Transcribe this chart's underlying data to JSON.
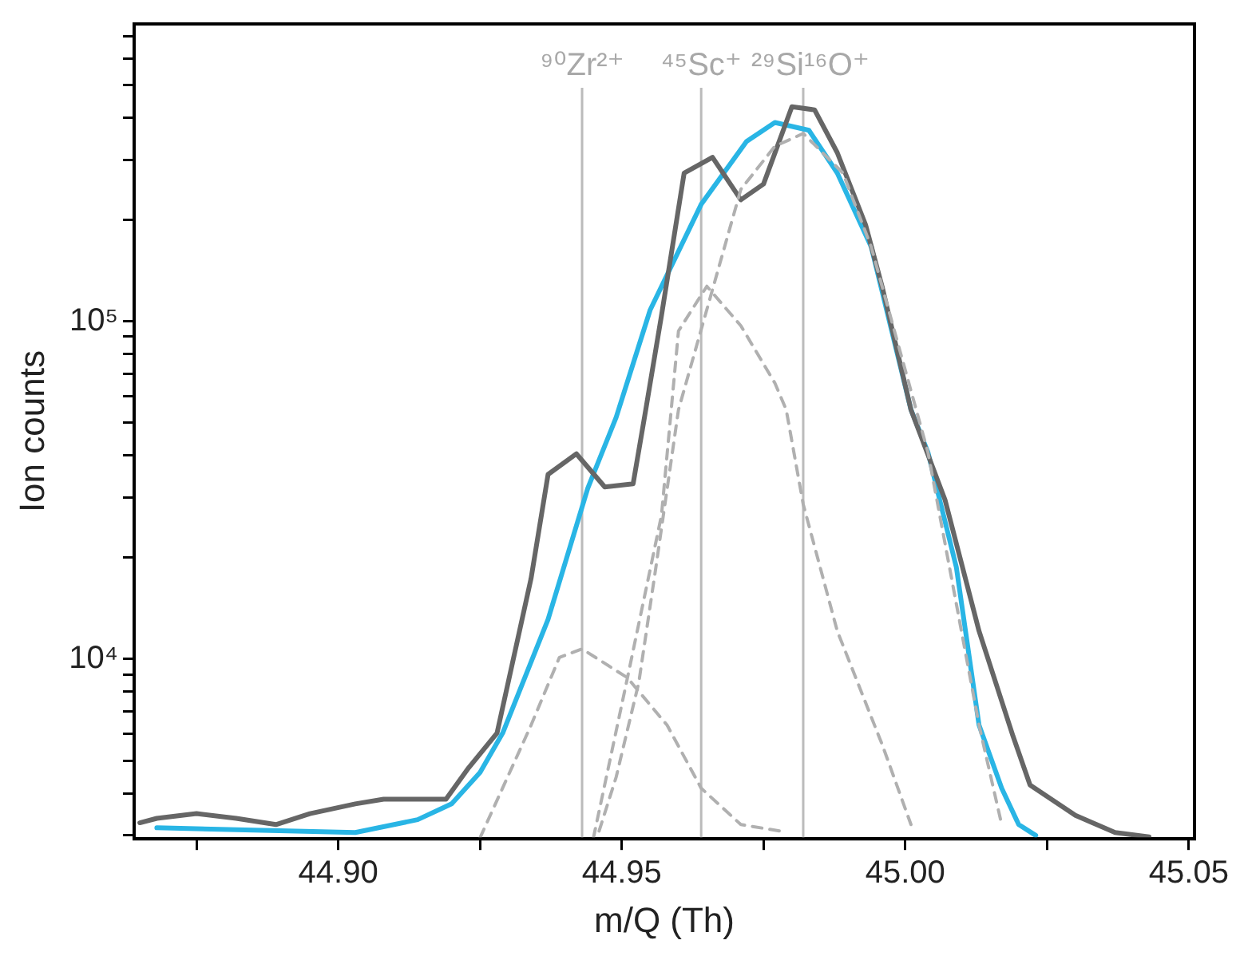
{
  "chart_data": {
    "type": "line",
    "xlabel": "m/Q (Th)",
    "ylabel": "Ion counts",
    "log": "y",
    "grid": false,
    "legend": false,
    "xlim": [
      44.864,
      45.051
    ],
    "ylim": [
      2930,
      760000
    ],
    "xticks": [
      {
        "value": 44.875,
        "label": null
      },
      {
        "value": 44.9,
        "label": "44.90"
      },
      {
        "value": 44.925,
        "label": null
      },
      {
        "value": 44.95,
        "label": "44.95"
      },
      {
        "value": 44.975,
        "label": null
      },
      {
        "value": 45.0,
        "label": "45.00"
      },
      {
        "value": 45.025,
        "label": null
      },
      {
        "value": 45.05,
        "label": "45.05"
      }
    ],
    "yticks": [
      {
        "value": 3000,
        "label": null
      },
      {
        "value": 4000,
        "label": null
      },
      {
        "value": 5000,
        "label": null
      },
      {
        "value": 6000,
        "label": null
      },
      {
        "value": 7000,
        "label": null
      },
      {
        "value": 8000,
        "label": null
      },
      {
        "value": 9000,
        "label": null
      },
      {
        "value": 10000,
        "label": "10⁴"
      },
      {
        "value": 20000,
        "label": null
      },
      {
        "value": 30000,
        "label": null
      },
      {
        "value": 40000,
        "label": null
      },
      {
        "value": 50000,
        "label": null
      },
      {
        "value": 60000,
        "label": null
      },
      {
        "value": 70000,
        "label": null
      },
      {
        "value": 80000,
        "label": null
      },
      {
        "value": 90000,
        "label": null
      },
      {
        "value": 100000,
        "label": "10⁵"
      },
      {
        "value": 200000,
        "label": null
      },
      {
        "value": 300000,
        "label": null
      },
      {
        "value": 400000,
        "label": null
      },
      {
        "value": 500000,
        "label": null
      },
      {
        "value": 600000,
        "label": null
      },
      {
        "value": 700000,
        "label": null
      }
    ],
    "ref_lines": [
      {
        "axis": "x",
        "value": 44.943,
        "label": "⁹⁰Zr²⁺",
        "color": "#bbbbbb"
      },
      {
        "axis": "x",
        "value": 44.964,
        "label": "⁴⁵Sc⁺",
        "color": "#bbbbbb"
      },
      {
        "axis": "x",
        "value": 44.982,
        "label": "²⁹Si¹⁶O⁺",
        "color": "#bbbbbb"
      }
    ],
    "series": [
      {
        "color": "#b0b0b0",
        "line_style": "dashed",
        "x": [
          44.925,
          44.934,
          44.939,
          44.943,
          44.951,
          44.958,
          44.964,
          44.971,
          44.978
        ],
        "values": [
          2950,
          6360,
          10100,
          10700,
          8790,
          6360,
          4140,
          3230,
          3090
        ]
      },
      {
        "color": "#b0b0b0",
        "line_style": "dashed",
        "x": [
          44.945,
          44.951,
          44.957,
          44.96,
          44.965,
          44.971,
          44.977,
          44.979,
          44.982,
          44.988,
          44.996,
          45.001
        ],
        "values": [
          2950,
          8790,
          26600,
          93600,
          127000,
          97000,
          65600,
          54700,
          28700,
          12100,
          5530,
          3230
        ]
      },
      {
        "color": "#b0b0b0",
        "line_style": "dashed",
        "x": [
          44.946,
          44.949,
          44.953,
          44.956,
          44.96,
          44.971,
          44.977,
          44.982,
          44.989,
          44.994,
          45.004,
          45.013,
          45.017
        ],
        "values": [
          3090,
          4460,
          8510,
          18600,
          54700,
          246000,
          330000,
          360000,
          275000,
          166000,
          40900,
          6370,
          3230
        ]
      },
      {
        "color": "#666666",
        "line_style": "solid",
        "x": [
          44.865,
          44.868,
          44.875,
          44.882,
          44.889,
          44.895,
          44.903,
          44.908,
          44.919,
          44.923,
          44.928,
          44.934,
          44.937,
          44.942,
          44.947,
          44.952,
          44.954,
          44.957,
          44.961,
          44.966,
          44.971,
          44.975,
          44.98,
          44.984,
          44.988,
          44.993,
          44.996,
          45.001,
          45.007,
          45.013,
          45.019,
          45.022,
          45.03,
          45.033,
          45.037,
          45.043
        ],
        "values": [
          3270,
          3370,
          3480,
          3370,
          3230,
          3480,
          3720,
          3840,
          3840,
          4760,
          6030,
          17300,
          35200,
          40500,
          32300,
          33000,
          51900,
          104000,
          275000,
          306000,
          229000,
          255000,
          432000,
          423000,
          316000,
          193000,
          125000,
          54700,
          29600,
          12100,
          5900,
          4230,
          3440,
          3270,
          3060,
          2970
        ]
      },
      {
        "color": "#29b5e5",
        "line_style": "solid",
        "x": [
          44.868,
          44.903,
          44.914,
          44.92,
          44.925,
          44.929,
          44.937,
          44.944,
          44.949,
          44.955,
          44.964,
          44.972,
          44.977,
          44.983,
          44.988,
          44.994,
          45.001,
          45.004,
          45.009,
          45.013,
          45.017,
          45.02,
          45.023
        ],
        "values": [
          3160,
          3060,
          3340,
          3720,
          4610,
          6030,
          13100,
          32000,
          51900,
          108000,
          222000,
          341000,
          388000,
          368000,
          275000,
          166000,
          54700,
          40900,
          18700,
          6370,
          4140,
          3230,
          3000
        ]
      }
    ]
  }
}
